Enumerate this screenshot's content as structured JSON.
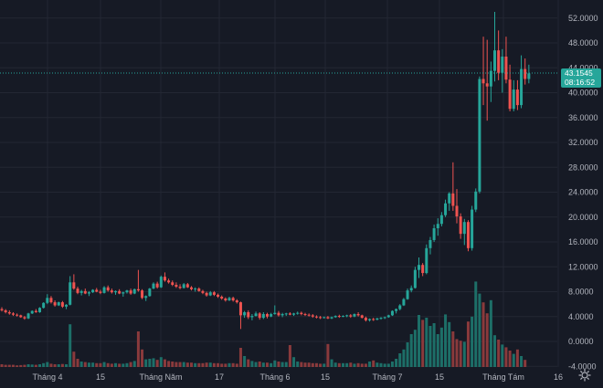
{
  "chart_data": {
    "type": "candlestick",
    "title": "",
    "xlabel": "",
    "ylabel": "",
    "ylim": [
      -4,
      54
    ],
    "y_ticks": [
      "52.0000",
      "48.0000",
      "44.0000",
      "40.0000",
      "36.0000",
      "32.0000",
      "28.0000",
      "24.0000",
      "20.0000",
      "16.0000",
      "12.0000",
      "8.0000",
      "4.0000",
      "0.0000",
      "-4.0000"
    ],
    "x_ticks": [
      "Tháng 4",
      "15",
      "Tháng Năm",
      "17",
      "Tháng 6",
      "15",
      "Tháng 7",
      "15",
      "Tháng Tám",
      "16"
    ],
    "last_price": "43.1545",
    "countdown": "08:16:52",
    "colors": {
      "up": "#26a69a",
      "down": "#ef5350",
      "volume_up": "#1d6f68",
      "volume_down": "#8a3a3c",
      "background": "#161a25",
      "grid": "#232733",
      "last_price_line": "#26a69a"
    },
    "candles": [
      [
        5.2,
        5.5,
        4.8,
        5.0
      ],
      [
        5.0,
        5.2,
        4.5,
        4.7
      ],
      [
        4.7,
        5.0,
        4.3,
        4.5
      ],
      [
        4.5,
        4.7,
        4.1,
        4.3
      ],
      [
        4.3,
        4.5,
        4.0,
        4.2
      ],
      [
        4.2,
        4.3,
        3.8,
        3.9
      ],
      [
        3.9,
        4.1,
        3.5,
        3.7
      ],
      [
        3.7,
        4.6,
        3.6,
        4.5
      ],
      [
        4.5,
        5.0,
        4.4,
        4.9
      ],
      [
        4.9,
        5.2,
        4.6,
        4.7
      ],
      [
        4.7,
        5.5,
        4.6,
        5.4
      ],
      [
        5.4,
        6.3,
        5.3,
        6.2
      ],
      [
        6.2,
        7.6,
        6.0,
        7.0
      ],
      [
        7.0,
        7.3,
        6.1,
        6.3
      ],
      [
        6.3,
        6.6,
        5.6,
        5.8
      ],
      [
        5.8,
        6.4,
        5.7,
        6.3
      ],
      [
        6.3,
        6.5,
        5.4,
        5.6
      ],
      [
        5.6,
        6.0,
        5.2,
        5.9
      ],
      [
        5.9,
        10.5,
        5.8,
        9.5
      ],
      [
        9.5,
        10.8,
        8.3,
        8.5
      ],
      [
        8.5,
        8.8,
        7.6,
        7.8
      ],
      [
        7.8,
        8.3,
        7.4,
        8.1
      ],
      [
        8.1,
        8.5,
        7.6,
        7.7
      ],
      [
        7.7,
        8.1,
        7.3,
        7.9
      ],
      [
        7.9,
        8.4,
        7.8,
        8.3
      ],
      [
        8.3,
        8.6,
        7.9,
        8.0
      ],
      [
        8.0,
        8.3,
        7.6,
        7.8
      ],
      [
        7.8,
        8.9,
        7.7,
        8.7
      ],
      [
        8.7,
        9.0,
        8.0,
        8.2
      ],
      [
        8.2,
        8.5,
        7.7,
        7.9
      ],
      [
        7.9,
        8.2,
        7.5,
        8.1
      ],
      [
        8.1,
        8.4,
        7.6,
        7.7
      ],
      [
        7.7,
        8.0,
        7.2,
        7.9
      ],
      [
        7.9,
        8.3,
        7.7,
        8.2
      ],
      [
        8.2,
        8.5,
        7.5,
        7.7
      ],
      [
        7.7,
        8.5,
        7.6,
        8.4
      ],
      [
        8.4,
        11.5,
        8.0,
        8.2
      ],
      [
        8.2,
        8.4,
        6.8,
        7.0
      ],
      [
        7.0,
        7.4,
        6.5,
        7.3
      ],
      [
        7.3,
        8.6,
        7.2,
        8.5
      ],
      [
        8.5,
        9.5,
        8.4,
        9.3
      ],
      [
        9.3,
        9.6,
        8.5,
        8.7
      ],
      [
        8.7,
        10.6,
        8.6,
        10.4
      ],
      [
        10.4,
        11.1,
        9.6,
        9.8
      ],
      [
        9.8,
        10.1,
        9.3,
        9.5
      ],
      [
        9.5,
        9.8,
        8.9,
        9.1
      ],
      [
        9.1,
        9.5,
        8.6,
        8.8
      ],
      [
        8.8,
        9.2,
        8.4,
        8.6
      ],
      [
        8.6,
        9.4,
        8.5,
        9.2
      ],
      [
        9.2,
        9.4,
        8.6,
        8.7
      ],
      [
        8.7,
        8.9,
        8.2,
        8.4
      ],
      [
        8.4,
        8.7,
        8.0,
        8.5
      ],
      [
        8.5,
        8.7,
        8.0,
        8.1
      ],
      [
        8.1,
        8.3,
        7.6,
        7.8
      ],
      [
        7.8,
        8.0,
        7.2,
        7.4
      ],
      [
        7.4,
        8.1,
        7.3,
        7.9
      ],
      [
        7.9,
        8.1,
        7.3,
        7.5
      ],
      [
        7.5,
        7.7,
        7.0,
        7.2
      ],
      [
        7.2,
        7.4,
        6.7,
        6.9
      ],
      [
        6.9,
        7.1,
        6.4,
        6.6
      ],
      [
        6.6,
        7.2,
        6.5,
        7.0
      ],
      [
        7.0,
        7.2,
        6.4,
        6.6
      ],
      [
        6.6,
        6.8,
        6.1,
        6.3
      ],
      [
        6.3,
        6.4,
        2.0,
        4.2
      ],
      [
        4.2,
        4.9,
        3.8,
        4.7
      ],
      [
        4.7,
        5.0,
        3.6,
        3.9
      ],
      [
        3.9,
        4.4,
        3.4,
        4.1
      ],
      [
        4.1,
        4.8,
        4.0,
        4.5
      ],
      [
        4.5,
        4.7,
        3.5,
        3.8
      ],
      [
        3.8,
        4.7,
        3.6,
        4.4
      ],
      [
        4.4,
        4.6,
        3.7,
        4.0
      ],
      [
        4.0,
        4.6,
        3.9,
        4.4
      ],
      [
        4.4,
        5.8,
        4.3,
        4.6
      ],
      [
        4.6,
        4.9,
        4.0,
        4.2
      ],
      [
        4.2,
        4.6,
        3.9,
        4.4
      ],
      [
        4.4,
        4.6,
        4.1,
        4.5
      ],
      [
        4.5,
        4.7,
        4.2,
        4.3
      ],
      [
        4.3,
        4.6,
        4.1,
        4.5
      ],
      [
        4.5,
        4.8,
        4.3,
        4.6
      ],
      [
        4.6,
        4.8,
        4.2,
        4.4
      ],
      [
        4.4,
        4.6,
        4.1,
        4.3
      ],
      [
        4.3,
        4.5,
        4.0,
        4.2
      ],
      [
        4.2,
        4.4,
        3.8,
        4.0
      ],
      [
        4.0,
        4.2,
        3.7,
        3.9
      ],
      [
        3.9,
        4.1,
        3.6,
        3.8
      ],
      [
        3.8,
        4.0,
        3.7,
        3.9
      ],
      [
        3.9,
        4.1,
        3.6,
        3.7
      ],
      [
        3.7,
        4.0,
        3.6,
        3.9
      ],
      [
        3.9,
        4.2,
        3.8,
        4.1
      ],
      [
        4.1,
        4.3,
        3.8,
        4.0
      ],
      [
        4.0,
        4.2,
        3.9,
        4.1
      ],
      [
        4.1,
        4.3,
        3.9,
        4.2
      ],
      [
        4.2,
        4.4,
        3.8,
        4.0
      ],
      [
        4.0,
        4.5,
        3.9,
        4.4
      ],
      [
        4.4,
        4.7,
        4.0,
        4.2
      ],
      [
        4.2,
        4.3,
        3.7,
        3.8
      ],
      [
        3.8,
        4.0,
        3.2,
        3.4
      ],
      [
        3.4,
        3.7,
        3.2,
        3.6
      ],
      [
        3.6,
        3.8,
        3.3,
        3.5
      ],
      [
        3.5,
        3.8,
        3.4,
        3.7
      ],
      [
        3.7,
        3.9,
        3.5,
        3.8
      ],
      [
        3.8,
        4.0,
        3.6,
        3.9
      ],
      [
        3.9,
        4.3,
        3.8,
        4.2
      ],
      [
        4.2,
        5.0,
        4.1,
        4.9
      ],
      [
        4.9,
        5.3,
        4.5,
        5.2
      ],
      [
        5.2,
        6.0,
        5.0,
        5.8
      ],
      [
        5.8,
        7.0,
        5.7,
        6.8
      ],
      [
        6.8,
        8.5,
        6.7,
        8.2
      ],
      [
        8.2,
        9.0,
        7.9,
        8.6
      ],
      [
        8.6,
        12.0,
        8.5,
        11.5
      ],
      [
        11.5,
        13.5,
        10.2,
        12.3
      ],
      [
        12.3,
        12.6,
        10.5,
        11.0
      ],
      [
        11.0,
        15.6,
        10.8,
        15.0
      ],
      [
        15.0,
        16.8,
        14.0,
        16.3
      ],
      [
        16.3,
        18.8,
        16.0,
        18.2
      ],
      [
        18.2,
        19.8,
        17.0,
        18.9
      ],
      [
        18.9,
        20.8,
        18.5,
        20.3
      ],
      [
        20.3,
        22.8,
        20.0,
        22.2
      ],
      [
        22.2,
        24.0,
        21.0,
        23.8
      ],
      [
        23.8,
        28.8,
        21.0,
        21.8
      ],
      [
        21.8,
        24.5,
        19.0,
        20.1
      ],
      [
        20.1,
        20.6,
        16.5,
        17.3
      ],
      [
        17.3,
        19.7,
        15.5,
        19.2
      ],
      [
        19.2,
        19.5,
        14.5,
        15.0
      ],
      [
        15.0,
        21.8,
        14.6,
        21.2
      ],
      [
        21.2,
        24.6,
        20.8,
        24.1
      ],
      [
        24.1,
        42.6,
        23.8,
        42.2
      ],
      [
        42.2,
        49.0,
        38.0,
        41.5
      ],
      [
        41.5,
        48.5,
        35.5,
        41.0
      ],
      [
        41.0,
        45.0,
        38.5,
        43.5
      ],
      [
        43.5,
        53.0,
        41.8,
        46.8
      ],
      [
        46.8,
        50.0,
        42.0,
        43.2
      ],
      [
        43.2,
        47.0,
        40.0,
        45.8
      ],
      [
        45.8,
        49.0,
        41.5,
        42.1
      ],
      [
        42.1,
        44.5,
        37.0,
        37.4
      ],
      [
        37.4,
        42.0,
        37.0,
        40.5
      ],
      [
        40.5,
        42.0,
        37.2,
        38.0
      ],
      [
        38.0,
        46.0,
        37.5,
        43.8
      ],
      [
        43.8,
        45.5,
        41.3,
        42.2
      ],
      [
        42.2,
        44.5,
        41.5,
        43.1
      ]
    ],
    "volumes": [
      0.5,
      0.4,
      0.4,
      0.4,
      0.3,
      0.35,
      0.4,
      0.5,
      0.45,
      0.4,
      0.5,
      0.7,
      0.9,
      0.6,
      0.5,
      0.5,
      0.55,
      0.5,
      7.8,
      2.8,
      1.5,
      1.0,
      0.9,
      0.8,
      0.8,
      0.7,
      0.7,
      0.9,
      0.7,
      0.6,
      0.7,
      0.6,
      0.6,
      0.7,
      0.9,
      1.1,
      6.5,
      3.2,
      1.4,
      1.5,
      1.6,
      1.3,
      1.8,
      1.4,
      1.1,
      1.0,
      0.9,
      0.9,
      0.9,
      0.8,
      0.8,
      0.7,
      0.7,
      0.7,
      0.8,
      0.8,
      0.7,
      0.7,
      0.6,
      0.6,
      0.7,
      0.7,
      0.6,
      3.5,
      2.0,
      1.4,
      1.1,
      0.9,
      1.0,
      0.8,
      0.8,
      0.7,
      1.2,
      1.0,
      0.9,
      0.9,
      4.0,
      1.8,
      1.0,
      0.9,
      0.8,
      0.8,
      0.7,
      0.7,
      0.6,
      0.6,
      4.2,
      1.4,
      0.8,
      0.7,
      0.7,
      0.7,
      0.8,
      0.6,
      0.7,
      0.6,
      0.6,
      1.0,
      1.2,
      0.8,
      0.7,
      0.6,
      0.6,
      1.0,
      1.5,
      2.5,
      3.2,
      4.5,
      6.0,
      6.8,
      9.5,
      8.6,
      9.0,
      7.5,
      8.0,
      6.0,
      7.2,
      9.6,
      8.2,
      6.5,
      5.1,
      4.8,
      4.6,
      8.3,
      9.2,
      15.6,
      13.4,
      11.8,
      9.8,
      12.2,
      5.8,
      5.0,
      4.1,
      3.6,
      3.0,
      2.4,
      3.2,
      2.0,
      1.3
    ]
  }
}
